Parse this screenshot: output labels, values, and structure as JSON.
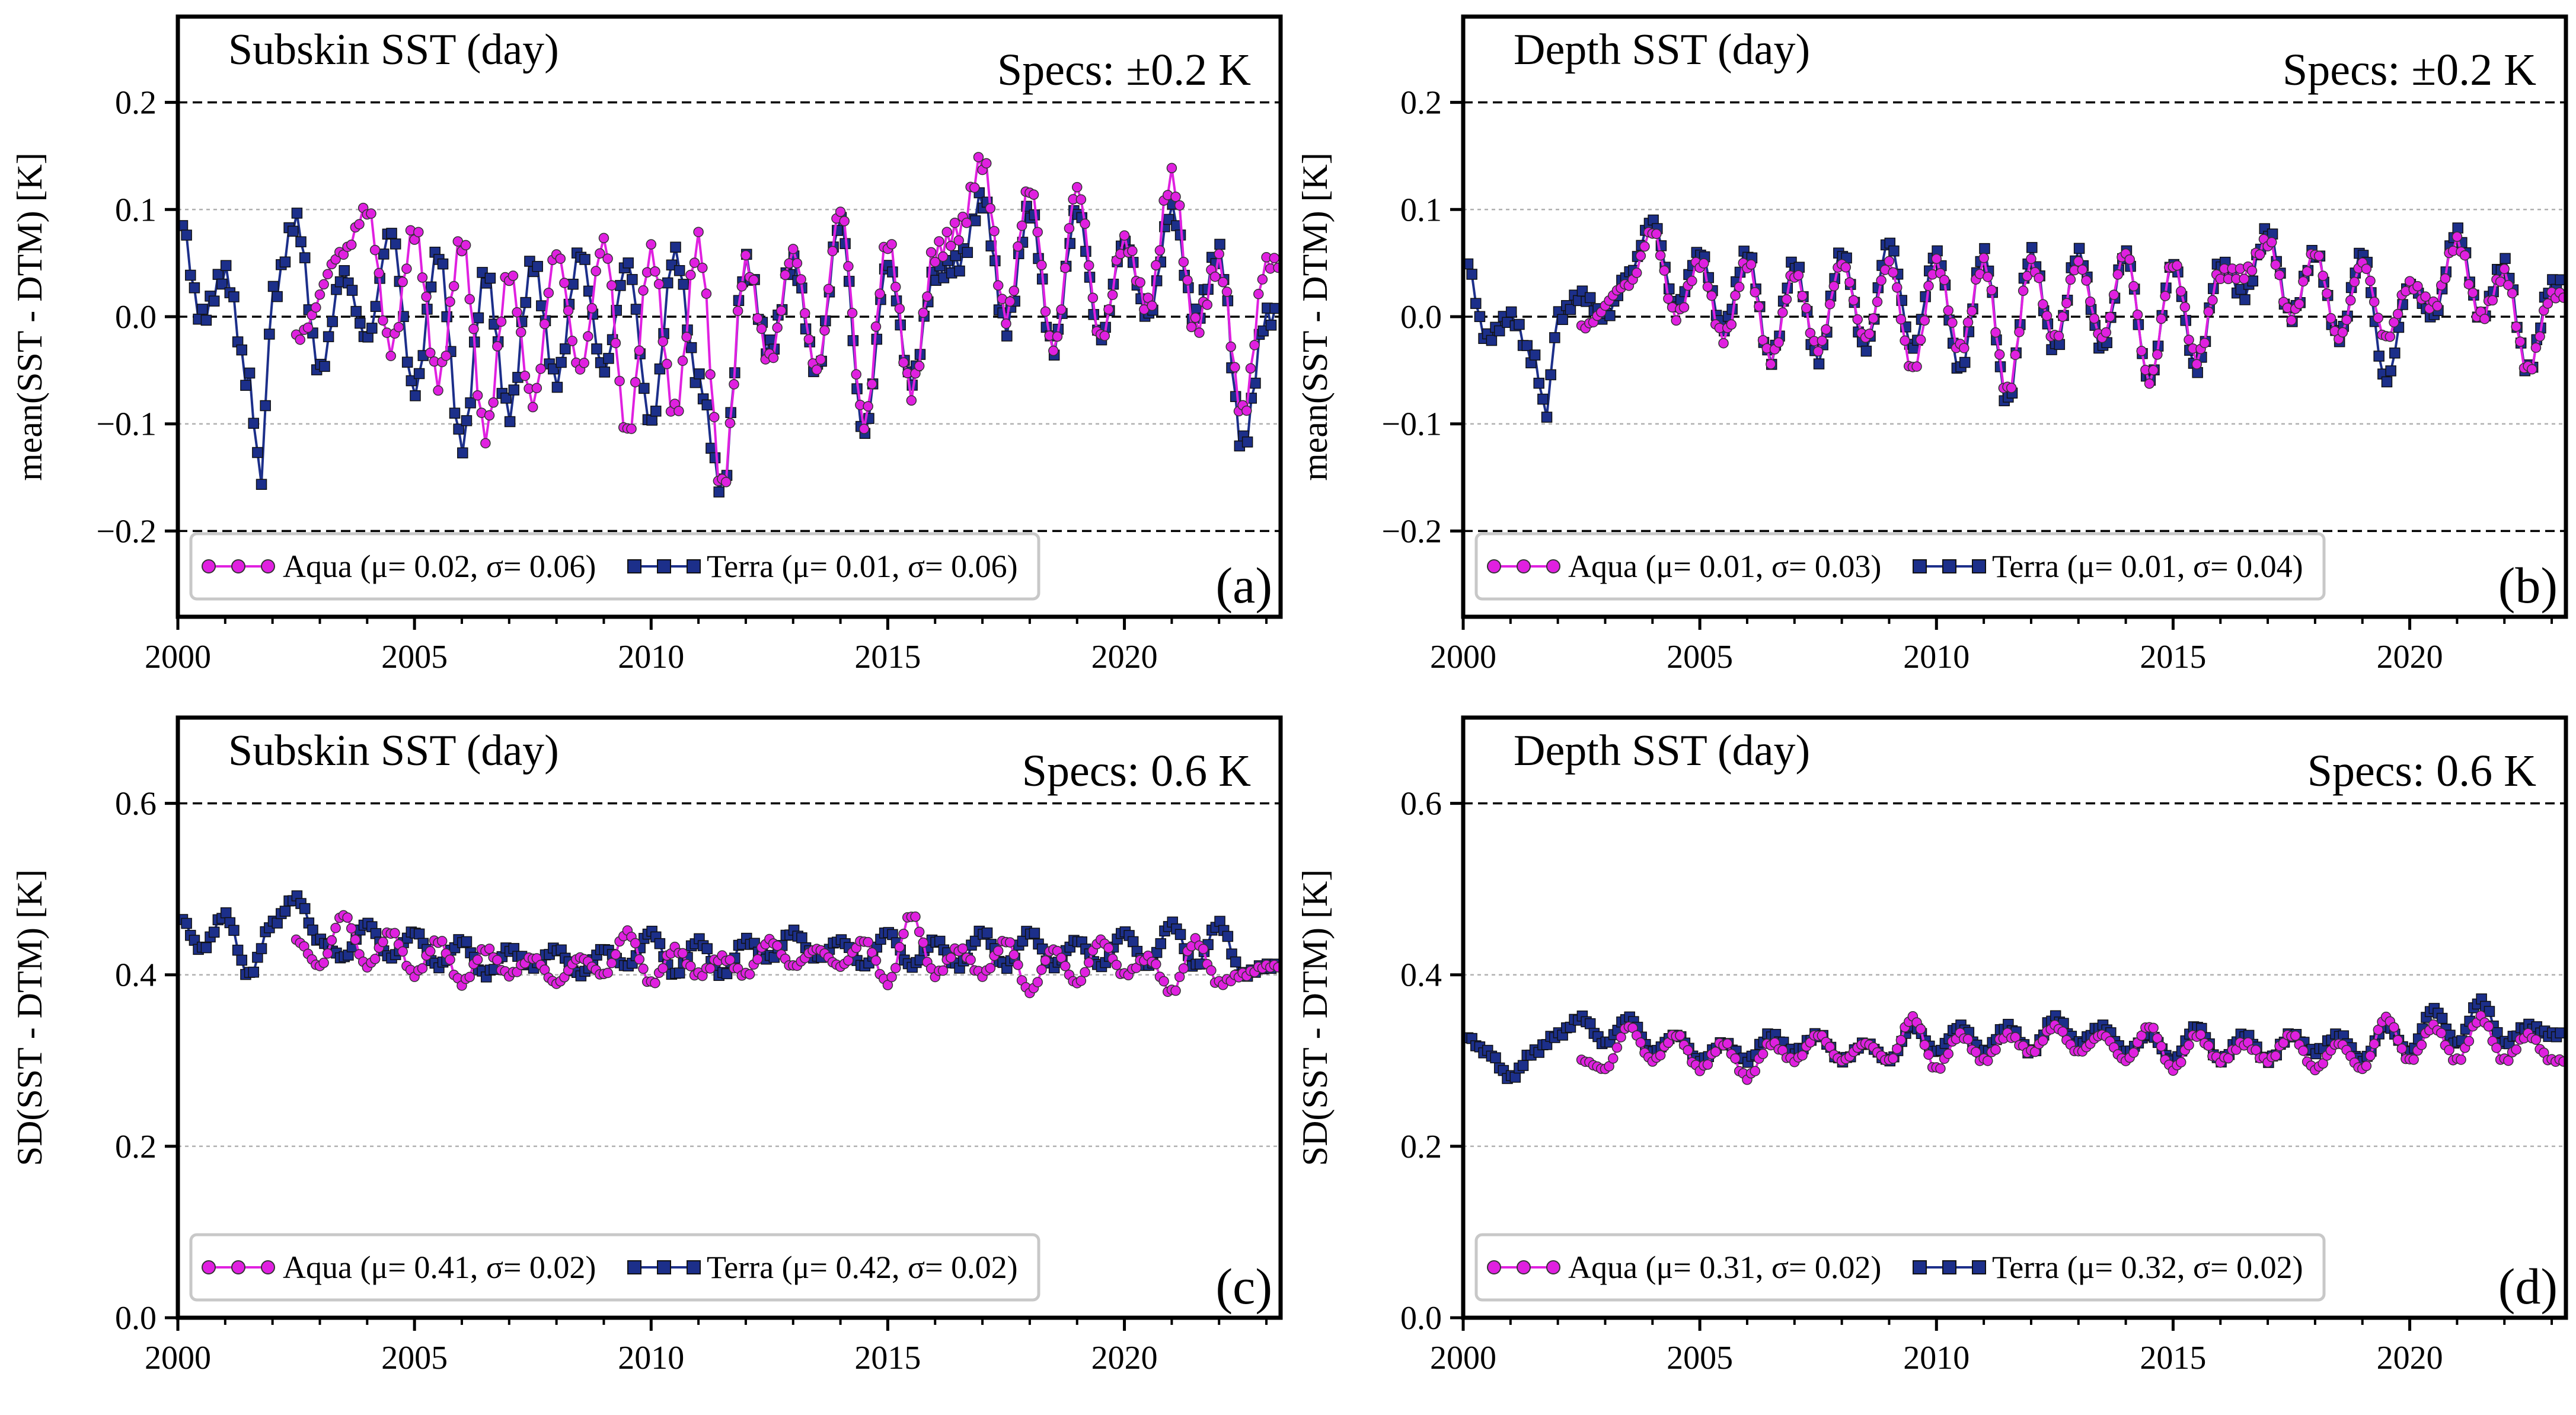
{
  "chart_data": [
    {
      "id": "a",
      "type": "line",
      "title": "Subskin SST (day)",
      "spec_label": "Specs: ±0.2 K",
      "panel_label": "(a)",
      "ylabel": "mean(SST - DTM) [K]",
      "ylim": [
        -0.28,
        0.28
      ],
      "yticks": [
        -0.2,
        -0.1,
        0.0,
        0.1,
        0.2
      ],
      "ytick_labels": [
        "−0.2",
        "−0.1",
        "0.0",
        "0.1",
        "0.2"
      ],
      "xlim": [
        2000,
        2023.3
      ],
      "xticks": [
        2000,
        2005,
        2010,
        2015,
        2020
      ],
      "xtick_labels": [
        "2000",
        "2005",
        "2010",
        "2015",
        "2020"
      ],
      "dashed_lines": [
        0.2,
        0.0,
        -0.2
      ],
      "grid_lines": [
        0.1,
        -0.1
      ],
      "legend_position": "lower-left",
      "series": [
        {
          "name": "Aqua (μ= 0.02, σ= 0.06)",
          "color": "#e020e0",
          "marker": "circle",
          "x_start": 2002.5,
          "mean": 0.02,
          "amp": 0.075,
          "x_end": 2023.25,
          "x": [
            2002.5,
            2003.5,
            2004.0,
            2004.5,
            2005.0,
            2005.5,
            2006.0,
            2006.5,
            2007.0,
            2007.5,
            2008.0,
            2008.5,
            2009.0,
            2009.5,
            2010.0,
            2010.5,
            2011.0,
            2011.5,
            2012.0,
            2012.5,
            2013.0,
            2013.5,
            2014.0,
            2014.5,
            2015.0,
            2015.5,
            2016.0,
            2016.5,
            2017.0,
            2017.5,
            2018.0,
            2018.5,
            2019.0,
            2019.5,
            2020.0,
            2020.5,
            2021.0,
            2021.5,
            2022.0,
            2022.5,
            2023.0
          ],
          "y": [
            -0.02,
            0.06,
            0.1,
            -0.03,
            0.08,
            -0.06,
            0.07,
            -0.11,
            0.04,
            -0.08,
            0.06,
            -0.05,
            0.07,
            -0.11,
            0.06,
            -0.09,
            0.07,
            -0.16,
            0.05,
            -0.04,
            0.06,
            -0.05,
            0.1,
            -0.1,
            0.07,
            -0.07,
            0.06,
            0.08,
            0.145,
            0.0,
            0.12,
            -0.03,
            0.12,
            -0.02,
            0.07,
            0.01,
            0.13,
            -0.01,
            0.05,
            -0.09,
            0.05
          ]
        },
        {
          "name": "Terra (μ= 0.01, σ= 0.06)",
          "color": "#1c2f8a",
          "marker": "square",
          "x_start": 2000.1,
          "mean": 0.01,
          "amp": 0.07,
          "x_end": 2023.25,
          "x": [
            2000.0,
            2000.5,
            2001.0,
            2001.5,
            2001.75,
            2002.0,
            2002.5,
            2003.0,
            2003.5,
            2004.0,
            2004.5,
            2005.0,
            2005.5,
            2006.0,
            2006.5,
            2007.0,
            2007.5,
            2008.0,
            2008.5,
            2009.0,
            2009.5,
            2010.0,
            2010.5,
            2011.0,
            2011.5,
            2012.0,
            2012.5,
            2013.0,
            2013.5,
            2014.0,
            2014.5,
            2015.0,
            2015.5,
            2016.0,
            2016.5,
            2017.0,
            2017.5,
            2018.0,
            2018.5,
            2019.0,
            2019.5,
            2020.0,
            2020.5,
            2021.0,
            2021.5,
            2022.0,
            2022.5,
            2023.0
          ],
          "y": [
            0.1,
            0.0,
            0.04,
            -0.06,
            -0.15,
            0.02,
            0.09,
            -0.05,
            0.04,
            -0.02,
            0.08,
            -0.07,
            0.06,
            -0.12,
            0.04,
            -0.09,
            0.05,
            -0.06,
            0.06,
            -0.05,
            0.05,
            -0.1,
            0.06,
            -0.06,
            -0.16,
            0.05,
            -0.03,
            0.05,
            -0.05,
            0.09,
            -0.11,
            0.05,
            -0.06,
            0.04,
            0.05,
            0.11,
            -0.01,
            0.1,
            -0.03,
            0.1,
            -0.02,
            0.07,
            0.0,
            0.1,
            0.0,
            0.06,
            -0.12,
            0.0
          ]
        }
      ]
    },
    {
      "id": "b",
      "type": "line",
      "title": "Depth SST (day)",
      "spec_label": "Specs: ±0.2 K",
      "panel_label": "(b)",
      "ylabel": "mean(SST - DTM) [K]",
      "ylim": [
        -0.28,
        0.28
      ],
      "yticks": [
        -0.2,
        -0.1,
        0.0,
        0.1,
        0.2
      ],
      "ytick_labels": [
        "−0.2",
        "−0.1",
        "0.0",
        "0.1",
        "0.2"
      ],
      "xlim": [
        2000,
        2023.3
      ],
      "xticks": [
        2000,
        2005,
        2010,
        2015,
        2020
      ],
      "xtick_labels": [
        "2000",
        "2005",
        "2010",
        "2015",
        "2020"
      ],
      "dashed_lines": [
        0.2,
        0.0,
        -0.2
      ],
      "grid_lines": [
        0.1,
        -0.1
      ],
      "legend_position": "lower-left",
      "series": [
        {
          "name": "Aqua (μ= 0.01, σ= 0.03)",
          "color": "#e020e0",
          "marker": "circle",
          "x_start": 2002.5,
          "mean": 0.01,
          "amp": 0.04,
          "x_end": 2023.25,
          "x": [
            2002.5,
            2003.5,
            2004.0,
            2004.5,
            2005.0,
            2005.5,
            2006.0,
            2006.5,
            2007.0,
            2007.5,
            2008.0,
            2008.5,
            2009.0,
            2009.5,
            2010.0,
            2010.5,
            2011.0,
            2011.5,
            2012.0,
            2012.5,
            2013.0,
            2013.5,
            2014.0,
            2014.5,
            2015.0,
            2015.5,
            2016.0,
            2016.5,
            2017.0,
            2017.5,
            2018.0,
            2018.5,
            2019.0,
            2019.5,
            2020.0,
            2020.5,
            2021.0,
            2021.5,
            2022.0,
            2022.5,
            2023.0
          ],
          "y": [
            -0.01,
            0.03,
            0.08,
            0.0,
            0.05,
            -0.02,
            0.05,
            -0.04,
            0.04,
            -0.03,
            0.05,
            -0.02,
            0.05,
            -0.05,
            0.05,
            -0.03,
            0.05,
            -0.07,
            0.05,
            -0.02,
            0.05,
            -0.02,
            0.06,
            -0.06,
            0.05,
            -0.04,
            0.04,
            0.04,
            0.07,
            0.0,
            0.06,
            -0.02,
            0.05,
            -0.02,
            0.03,
            0.01,
            0.07,
            0.0,
            0.04,
            -0.05,
            0.02
          ]
        },
        {
          "name": "Terra (μ= 0.01, σ= 0.04)",
          "color": "#1c2f8a",
          "marker": "square",
          "x_start": 2000.1,
          "mean": 0.01,
          "amp": 0.04,
          "x_end": 2023.25,
          "x": [
            2000.0,
            2000.5,
            2001.0,
            2001.5,
            2001.75,
            2002.0,
            2002.5,
            2003.0,
            2003.5,
            2004.0,
            2004.5,
            2005.0,
            2005.5,
            2006.0,
            2006.5,
            2007.0,
            2007.5,
            2008.0,
            2008.5,
            2009.0,
            2009.5,
            2010.0,
            2010.5,
            2011.0,
            2011.5,
            2012.0,
            2012.5,
            2013.0,
            2013.5,
            2014.0,
            2014.5,
            2015.0,
            2015.5,
            2016.0,
            2016.5,
            2017.0,
            2017.5,
            2018.0,
            2018.5,
            2019.0,
            2019.5,
            2020.0,
            2020.5,
            2021.0,
            2021.5,
            2022.0,
            2022.5,
            2023.0
          ],
          "y": [
            0.06,
            -0.02,
            0.0,
            -0.04,
            -0.09,
            0.0,
            0.02,
            0.0,
            0.04,
            0.09,
            0.01,
            0.06,
            -0.01,
            0.06,
            -0.04,
            0.05,
            -0.04,
            0.06,
            -0.03,
            0.07,
            -0.03,
            0.06,
            -0.05,
            0.06,
            -0.08,
            0.06,
            -0.03,
            0.06,
            -0.03,
            0.06,
            -0.06,
            0.05,
            -0.05,
            0.05,
            0.02,
            0.08,
            0.0,
            0.06,
            -0.02,
            0.06,
            -0.06,
            0.03,
            0.0,
            0.08,
            0.0,
            0.05,
            -0.05,
            0.03
          ]
        }
      ]
    },
    {
      "id": "c",
      "type": "line",
      "title": "Subskin SST (day)",
      "spec_label": "Specs: 0.6 K",
      "panel_label": "(c)",
      "ylabel": "SD(SST - DTM) [K]",
      "ylim": [
        0.0,
        0.7
      ],
      "yticks": [
        0.0,
        0.2,
        0.4,
        0.6
      ],
      "ytick_labels": [
        "0.0",
        "0.2",
        "0.4",
        "0.6"
      ],
      "xlim": [
        2000,
        2023.3
      ],
      "xticks": [
        2000,
        2005,
        2010,
        2015,
        2020
      ],
      "xtick_labels": [
        "2000",
        "2005",
        "2010",
        "2015",
        "2020"
      ],
      "dashed_lines": [
        0.6
      ],
      "grid_lines": [
        0.2,
        0.4
      ],
      "legend_position": "lower-left",
      "series": [
        {
          "name": "Aqua (μ= 0.41, σ= 0.02)",
          "color": "#e020e0",
          "marker": "circle",
          "x_start": 2002.5,
          "mean": 0.415,
          "amp": 0.022,
          "x_end": 2023.25,
          "x": [
            2002.5,
            2003.0,
            2003.5,
            2004.0,
            2004.5,
            2005.0,
            2005.5,
            2006.0,
            2006.5,
            2007.0,
            2007.5,
            2008.0,
            2008.5,
            2009.0,
            2009.5,
            2010.0,
            2010.5,
            2011.0,
            2011.5,
            2012.0,
            2012.5,
            2013.0,
            2013.5,
            2014.0,
            2014.5,
            2015.0,
            2015.5,
            2016.0,
            2016.5,
            2017.0,
            2017.5,
            2018.0,
            2018.5,
            2019.0,
            2019.5,
            2020.0,
            2020.5,
            2021.0,
            2021.5,
            2022.0,
            2022.5,
            2023.0
          ],
          "y": [
            0.44,
            0.41,
            0.47,
            0.41,
            0.45,
            0.4,
            0.44,
            0.39,
            0.43,
            0.4,
            0.42,
            0.39,
            0.42,
            0.4,
            0.45,
            0.39,
            0.43,
            0.4,
            0.42,
            0.4,
            0.44,
            0.41,
            0.43,
            0.41,
            0.44,
            0.39,
            0.47,
            0.4,
            0.43,
            0.4,
            0.44,
            0.38,
            0.43,
            0.39,
            0.44,
            0.4,
            0.42,
            0.38,
            0.44,
            0.39,
            0.4,
            0.41
          ]
        },
        {
          "name": "Terra (μ= 0.42, σ= 0.02)",
          "color": "#1c2f8a",
          "marker": "square",
          "x_start": 2000.1,
          "mean": 0.425,
          "amp": 0.022,
          "x_end": 2023.25,
          "x": [
            2000.0,
            2000.5,
            2001.0,
            2001.5,
            2002.0,
            2002.5,
            2003.0,
            2003.5,
            2004.0,
            2004.5,
            2005.0,
            2005.5,
            2006.0,
            2006.5,
            2007.0,
            2007.5,
            2008.0,
            2008.5,
            2009.0,
            2009.5,
            2010.0,
            2010.5,
            2011.0,
            2011.5,
            2012.0,
            2012.5,
            2013.0,
            2013.5,
            2014.0,
            2014.5,
            2015.0,
            2015.5,
            2016.0,
            2016.5,
            2017.0,
            2017.5,
            2018.0,
            2018.5,
            2019.0,
            2019.5,
            2020.0,
            2020.5,
            2021.0,
            2021.5,
            2022.0,
            2022.5,
            2023.0
          ],
          "y": [
            0.47,
            0.43,
            0.47,
            0.4,
            0.46,
            0.49,
            0.44,
            0.42,
            0.46,
            0.42,
            0.45,
            0.41,
            0.44,
            0.4,
            0.43,
            0.41,
            0.43,
            0.4,
            0.43,
            0.41,
            0.45,
            0.4,
            0.44,
            0.4,
            0.44,
            0.42,
            0.45,
            0.42,
            0.44,
            0.41,
            0.45,
            0.41,
            0.44,
            0.41,
            0.45,
            0.41,
            0.45,
            0.41,
            0.44,
            0.41,
            0.45,
            0.41,
            0.46,
            0.41,
            0.46,
            0.4,
            0.41
          ]
        }
      ]
    },
    {
      "id": "d",
      "type": "line",
      "title": "Depth SST (day)",
      "spec_label": "Specs: 0.6 K",
      "panel_label": "(d)",
      "ylabel": "SD(SST - DTM) [K]",
      "ylim": [
        0.0,
        0.7
      ],
      "yticks": [
        0.0,
        0.2,
        0.4,
        0.6
      ],
      "ytick_labels": [
        "0.0",
        "0.2",
        "0.4",
        "0.6"
      ],
      "xlim": [
        2000,
        2023.3
      ],
      "xticks": [
        2000,
        2005,
        2010,
        2015,
        2020
      ],
      "xtick_labels": [
        "2000",
        "2005",
        "2010",
        "2015",
        "2020"
      ],
      "dashed_lines": [
        0.6
      ],
      "grid_lines": [
        0.2,
        0.4
      ],
      "legend_position": "lower-left",
      "series": [
        {
          "name": "Aqua (μ= 0.31, σ= 0.02)",
          "color": "#e020e0",
          "marker": "circle",
          "x_start": 2002.5,
          "mean": 0.315,
          "amp": 0.02,
          "x_end": 2023.25,
          "x": [
            2002.5,
            2003.0,
            2003.5,
            2004.0,
            2004.5,
            2005.0,
            2005.5,
            2006.0,
            2006.5,
            2007.0,
            2007.5,
            2008.0,
            2008.5,
            2009.0,
            2009.5,
            2010.0,
            2010.5,
            2011.0,
            2011.5,
            2012.0,
            2012.5,
            2013.0,
            2013.5,
            2014.0,
            2014.5,
            2015.0,
            2015.5,
            2016.0,
            2016.5,
            2017.0,
            2017.5,
            2018.0,
            2018.5,
            2019.0,
            2019.5,
            2020.0,
            2020.5,
            2021.0,
            2021.5,
            2022.0,
            2022.5,
            2023.0
          ],
          "y": [
            0.3,
            0.29,
            0.34,
            0.3,
            0.33,
            0.29,
            0.32,
            0.28,
            0.32,
            0.3,
            0.33,
            0.3,
            0.32,
            0.3,
            0.35,
            0.29,
            0.33,
            0.3,
            0.33,
            0.31,
            0.34,
            0.31,
            0.33,
            0.3,
            0.34,
            0.29,
            0.33,
            0.3,
            0.32,
            0.3,
            0.33,
            0.29,
            0.32,
            0.29,
            0.35,
            0.3,
            0.34,
            0.3,
            0.35,
            0.3,
            0.33,
            0.3
          ]
        },
        {
          "name": "Terra (μ= 0.32, σ= 0.02)",
          "color": "#1c2f8a",
          "marker": "square",
          "x_start": 2000.1,
          "mean": 0.32,
          "amp": 0.02,
          "x_end": 2023.25,
          "x": [
            2000.0,
            2000.5,
            2001.0,
            2001.5,
            2002.0,
            2002.5,
            2003.0,
            2003.5,
            2004.0,
            2004.5,
            2005.0,
            2005.5,
            2006.0,
            2006.5,
            2007.0,
            2007.5,
            2008.0,
            2008.5,
            2009.0,
            2009.5,
            2010.0,
            2010.5,
            2011.0,
            2011.5,
            2012.0,
            2012.5,
            2013.0,
            2013.5,
            2014.0,
            2014.5,
            2015.0,
            2015.5,
            2016.0,
            2016.5,
            2017.0,
            2017.5,
            2018.0,
            2018.5,
            2019.0,
            2019.5,
            2020.0,
            2020.5,
            2021.0,
            2021.5,
            2022.0,
            2022.5,
            2023.0
          ],
          "y": [
            0.33,
            0.31,
            0.28,
            0.31,
            0.33,
            0.35,
            0.32,
            0.35,
            0.31,
            0.33,
            0.3,
            0.32,
            0.3,
            0.33,
            0.31,
            0.33,
            0.3,
            0.32,
            0.3,
            0.34,
            0.31,
            0.34,
            0.31,
            0.34,
            0.31,
            0.35,
            0.32,
            0.34,
            0.31,
            0.33,
            0.3,
            0.34,
            0.3,
            0.33,
            0.3,
            0.33,
            0.31,
            0.33,
            0.3,
            0.34,
            0.31,
            0.36,
            0.32,
            0.37,
            0.32,
            0.34,
            0.33
          ]
        }
      ]
    }
  ]
}
